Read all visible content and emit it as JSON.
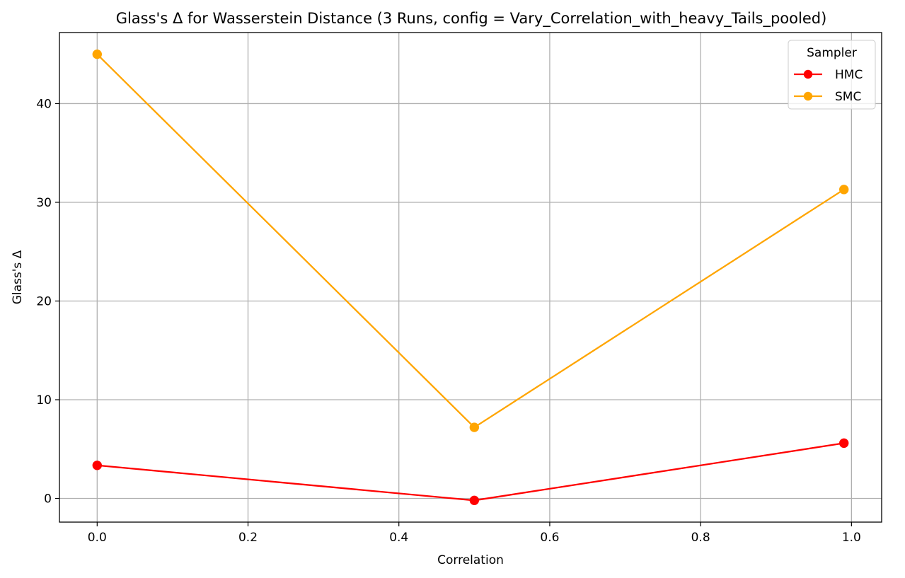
{
  "chart_data": {
    "type": "line",
    "title": "Glass's Δ for Wasserstein Distance (3 Runs, config = Vary_Correlation_with_heavy_Tails_pooled)",
    "xlabel": "Correlation",
    "ylabel": "Glass's Δ",
    "x": [
      0.0,
      0.5,
      0.99
    ],
    "xlim": [
      -0.05,
      1.04
    ],
    "ylim": [
      -2.4,
      47.2
    ],
    "xticks": [
      0.0,
      0.2,
      0.4,
      0.6,
      0.8,
      1.0
    ],
    "xtick_labels": [
      "0.0",
      "0.2",
      "0.4",
      "0.6",
      "0.8",
      "1.0"
    ],
    "yticks": [
      0,
      10,
      20,
      30,
      40
    ],
    "ytick_labels": [
      "0",
      "10",
      "20",
      "30",
      "40"
    ],
    "grid": true,
    "legend": {
      "title": "Sampler",
      "placement": "top-right"
    },
    "series": [
      {
        "name": "HMC",
        "color": "#ff0000",
        "values": [
          3.35,
          -0.2,
          5.6
        ]
      },
      {
        "name": "SMC",
        "color": "#ffa500",
        "values": [
          45.0,
          7.2,
          31.3
        ]
      }
    ]
  }
}
